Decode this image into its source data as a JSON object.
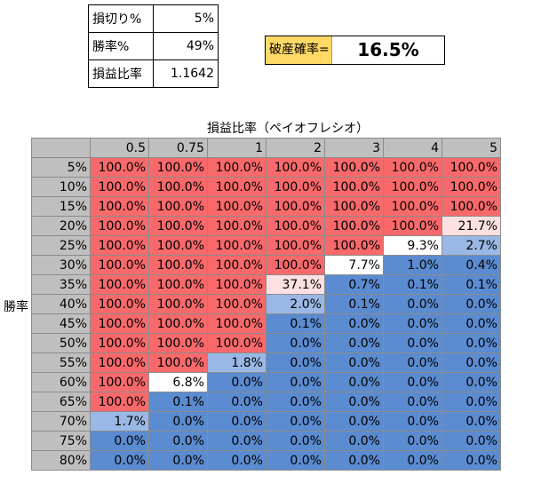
{
  "params": [
    {
      "label": "損切り%",
      "value": "5%"
    },
    {
      "label": "勝率%",
      "value": "49%"
    },
    {
      "label": "損益比率",
      "value": "1.1642"
    }
  ],
  "ruin": {
    "label": "破産確率=",
    "value": "16.5%"
  },
  "matrix": {
    "x_title": "損益比率（ペイオフレシオ）",
    "y_title": "勝率",
    "columns": [
      "0.5",
      "0.75",
      "1",
      "2",
      "3",
      "4",
      "5"
    ],
    "rows": [
      {
        "label": "5%",
        "values": [
          "100.0%",
          "100.0%",
          "100.0%",
          "100.0%",
          "100.0%",
          "100.0%",
          "100.0%"
        ]
      },
      {
        "label": "10%",
        "values": [
          "100.0%",
          "100.0%",
          "100.0%",
          "100.0%",
          "100.0%",
          "100.0%",
          "100.0%"
        ]
      },
      {
        "label": "15%",
        "values": [
          "100.0%",
          "100.0%",
          "100.0%",
          "100.0%",
          "100.0%",
          "100.0%",
          "100.0%"
        ]
      },
      {
        "label": "20%",
        "values": [
          "100.0%",
          "100.0%",
          "100.0%",
          "100.0%",
          "100.0%",
          "100.0%",
          "21.7%"
        ]
      },
      {
        "label": "25%",
        "values": [
          "100.0%",
          "100.0%",
          "100.0%",
          "100.0%",
          "100.0%",
          "9.3%",
          "2.7%"
        ]
      },
      {
        "label": "30%",
        "values": [
          "100.0%",
          "100.0%",
          "100.0%",
          "100.0%",
          "7.7%",
          "1.0%",
          "0.4%"
        ]
      },
      {
        "label": "35%",
        "values": [
          "100.0%",
          "100.0%",
          "100.0%",
          "37.1%",
          "0.7%",
          "0.1%",
          "0.1%"
        ]
      },
      {
        "label": "40%",
        "values": [
          "100.0%",
          "100.0%",
          "100.0%",
          "2.0%",
          "0.1%",
          "0.0%",
          "0.0%"
        ]
      },
      {
        "label": "45%",
        "values": [
          "100.0%",
          "100.0%",
          "100.0%",
          "0.1%",
          "0.0%",
          "0.0%",
          "0.0%"
        ]
      },
      {
        "label": "50%",
        "values": [
          "100.0%",
          "100.0%",
          "100.0%",
          "0.0%",
          "0.0%",
          "0.0%",
          "0.0%"
        ]
      },
      {
        "label": "55%",
        "values": [
          "100.0%",
          "100.0%",
          "1.8%",
          "0.0%",
          "0.0%",
          "0.0%",
          "0.0%"
        ]
      },
      {
        "label": "60%",
        "values": [
          "100.0%",
          "6.8%",
          "0.0%",
          "0.0%",
          "0.0%",
          "0.0%",
          "0.0%"
        ]
      },
      {
        "label": "65%",
        "values": [
          "100.0%",
          "0.1%",
          "0.0%",
          "0.0%",
          "0.0%",
          "0.0%",
          "0.0%"
        ]
      },
      {
        "label": "70%",
        "values": [
          "1.7%",
          "0.0%",
          "0.0%",
          "0.0%",
          "0.0%",
          "0.0%",
          "0.0%"
        ]
      },
      {
        "label": "75%",
        "values": [
          "0.0%",
          "0.0%",
          "0.0%",
          "0.0%",
          "0.0%",
          "0.0%",
          "0.0%"
        ]
      },
      {
        "label": "80%",
        "values": [
          "0.0%",
          "0.0%",
          "0.0%",
          "0.0%",
          "0.0%",
          "0.0%",
          "0.0%"
        ]
      }
    ]
  },
  "colors": {
    "high": "#f8696b",
    "low": "#5b8bd0",
    "mid_low": "#9ab8e5",
    "mid_high": "#fde0e1",
    "result_label_bg": "#ffd966",
    "header_bg": "#bfbfbf"
  }
}
